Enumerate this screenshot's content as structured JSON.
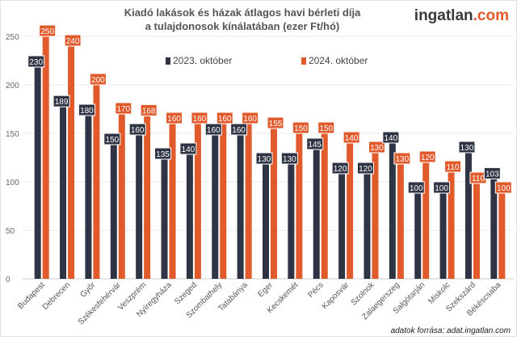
{
  "chart_data": {
    "type": "bar",
    "title": "Kiadó lakások és házak átlagos havi bérleti díja a tulajdonosok kínálatában (ezer Ft/hó)",
    "title_lines": [
      "Kiadó lakások és házak átlagos havi bérleti díja",
      "a tulajdonosok kínálatában (ezer Ft/hó)"
    ],
    "categories": [
      "Budapest",
      "Debrecen",
      "Győr",
      "Székesfehérvár",
      "Veszprém",
      "Nyíregyháza",
      "Szeged",
      "Szombathely",
      "Tatabánya",
      "Eger",
      "Kecskemét",
      "Pécs",
      "Kaposvár",
      "Szolnok",
      "Zalaegerszeg",
      "Salgótarján",
      "Miskolc",
      "Szekszárd",
      "Békéscsaba"
    ],
    "series": [
      {
        "name": "2023. október",
        "color": "#2f3444",
        "values": [
          230,
          189,
          180,
          150,
          160,
          135,
          140,
          160,
          160,
          130,
          130,
          145,
          120,
          120,
          140,
          100,
          100,
          130,
          103
        ]
      },
      {
        "name": "2024. október",
        "color": "#e05a2b",
        "values": [
          250,
          240,
          200,
          170,
          168,
          160,
          160,
          160,
          160,
          155,
          150,
          150,
          140,
          130,
          130,
          120,
          110,
          110,
          100
        ]
      }
    ],
    "ylim": [
      0,
      250
    ],
    "yticks": [
      0,
      50,
      100,
      150,
      200,
      250
    ],
    "grid": true,
    "legend": "top-center",
    "xlabel": "",
    "ylabel": ""
  },
  "logo": {
    "main": "ingatlan",
    "suffix": ".com"
  },
  "source": "adatok forrása: adat.ingatlan.com"
}
